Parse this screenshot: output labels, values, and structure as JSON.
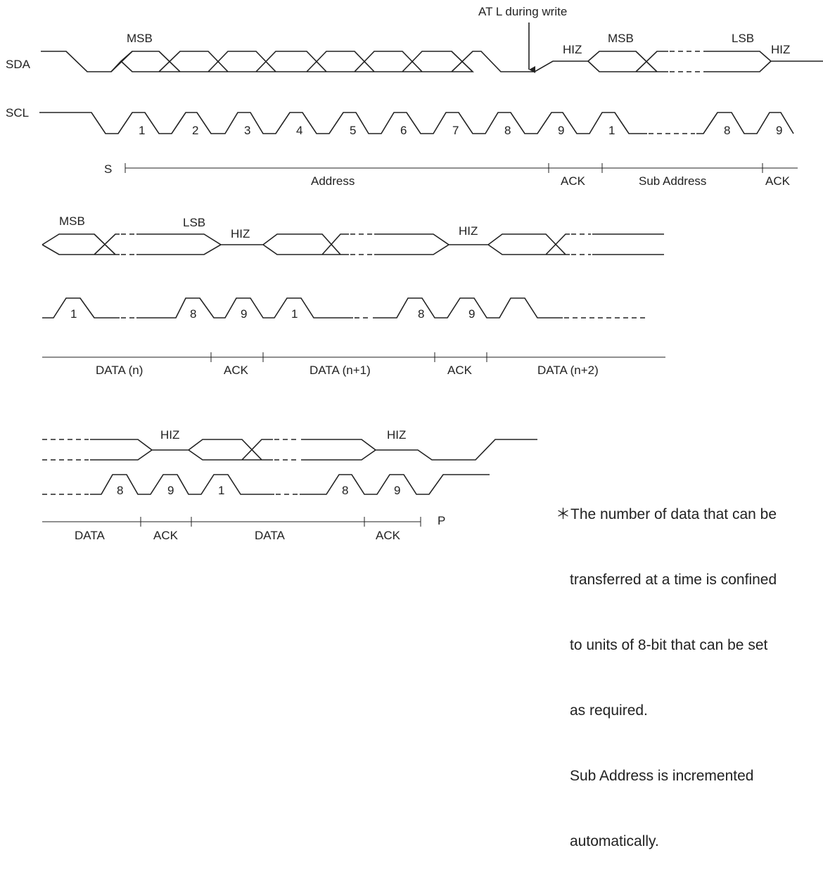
{
  "signals": {
    "sda": "SDA",
    "scl": "SCL"
  },
  "start": "S",
  "stop": "P",
  "ack_callout": "AT L during write",
  "row1": {
    "sda_labels": {
      "msb1": "MSB",
      "hiz1": "HIZ",
      "msb2": "MSB",
      "lsb": "LSB",
      "hiz2": "HIZ"
    },
    "clock_numbers": [
      "1",
      "2",
      "3",
      "4",
      "5",
      "6",
      "7",
      "8",
      "9",
      "1",
      "8",
      "9"
    ],
    "fields": [
      "Address",
      "ACK",
      "Sub Address",
      "ACK"
    ]
  },
  "row2": {
    "sda_labels": {
      "msb": "MSB",
      "lsb": "LSB",
      "hiz1": "HIZ",
      "hiz2": "HIZ"
    },
    "clock_numbers": [
      "1",
      "8",
      "9",
      "1",
      "8",
      "9"
    ],
    "fields": [
      "DATA (n)",
      "ACK",
      "DATA (n+1)",
      "ACK",
      "DATA (n+2)"
    ]
  },
  "row3": {
    "sda_labels": {
      "hiz1": "HIZ",
      "hiz2": "HIZ"
    },
    "clock_numbers": [
      "8",
      "9",
      "1",
      "8",
      "9"
    ],
    "fields": [
      "DATA",
      "ACK",
      "DATA",
      "ACK"
    ]
  },
  "note": [
    "＊The number of data that can be",
    "transferred at a time is confined",
    "to units of 8-bit that can be set",
    "as required.",
    "Sub Address is incremented",
    "automatically."
  ]
}
